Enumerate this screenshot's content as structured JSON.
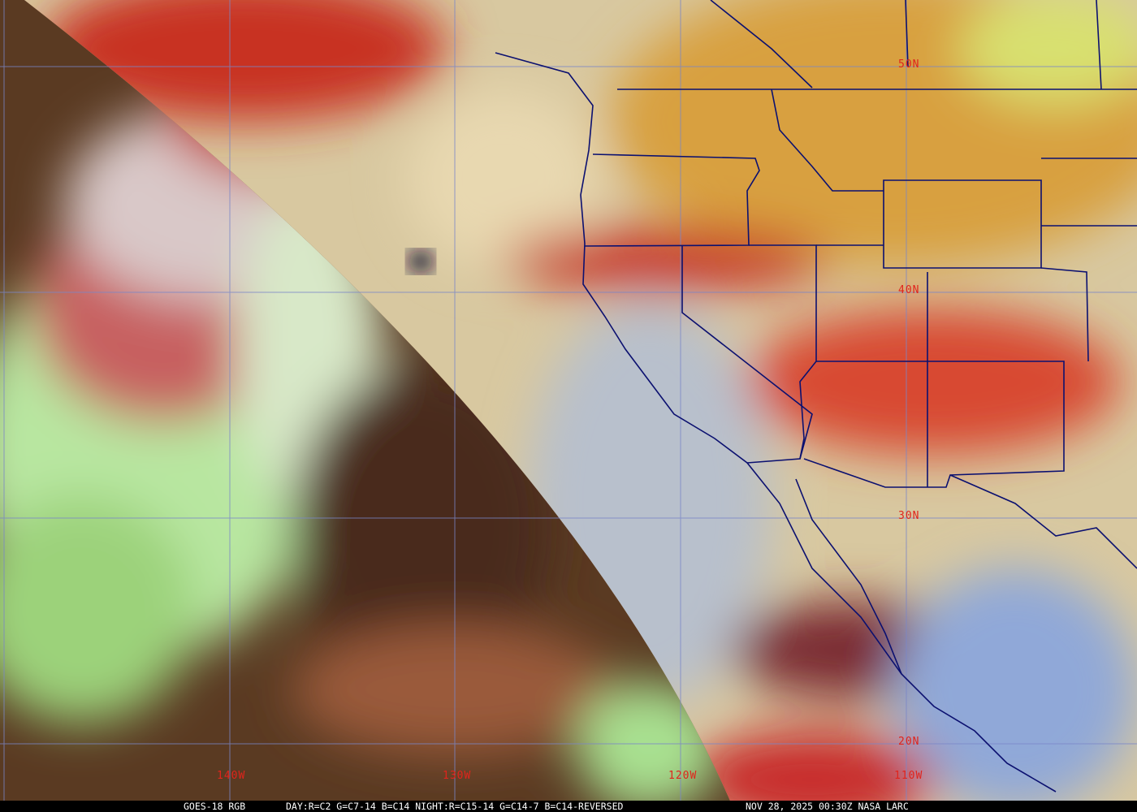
{
  "image": {
    "type": "satellite RGB composite",
    "region": "US West Coast and eastern Pacific",
    "colors": {
      "grid": "#7a86c8",
      "borders": "#0b1070",
      "labels": "#e0241c",
      "caption_bg": "#000000",
      "caption_text": "#ffffff"
    }
  },
  "grid_labels": {
    "latitude": [
      "50N",
      "40N",
      "30N",
      "20N"
    ],
    "longitude": [
      "140W",
      "130W",
      "120W",
      "110W"
    ]
  },
  "caption": {
    "product": "GOES-18 RGB",
    "recipe": "DAY:R=C2 G=C7-14 B=C14 NIGHT:R=C15-14 G=C14-7 B=C14-REVERSED",
    "timestamp": "NOV 28, 2025 00:30Z NASA LARC"
  }
}
